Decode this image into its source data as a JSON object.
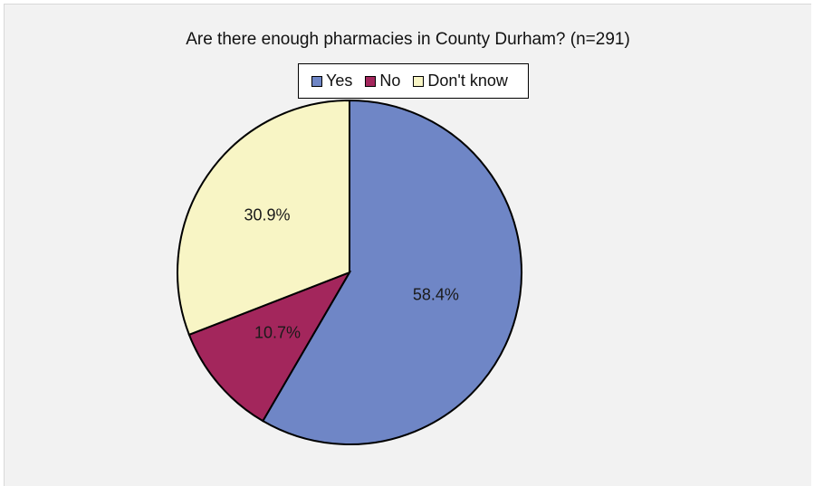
{
  "chart_data": {
    "type": "pie",
    "title": "Are there enough pharmacies in County Durham? (n=291)",
    "legend_position": "top",
    "categories": [
      "Yes",
      "No",
      "Don't know"
    ],
    "values": [
      58.4,
      10.7,
      30.9
    ],
    "labels": [
      "58.4%",
      "10.7%",
      "30.9%"
    ],
    "colors": [
      "#6f86c6",
      "#a3265c",
      "#f8f5c5"
    ]
  }
}
